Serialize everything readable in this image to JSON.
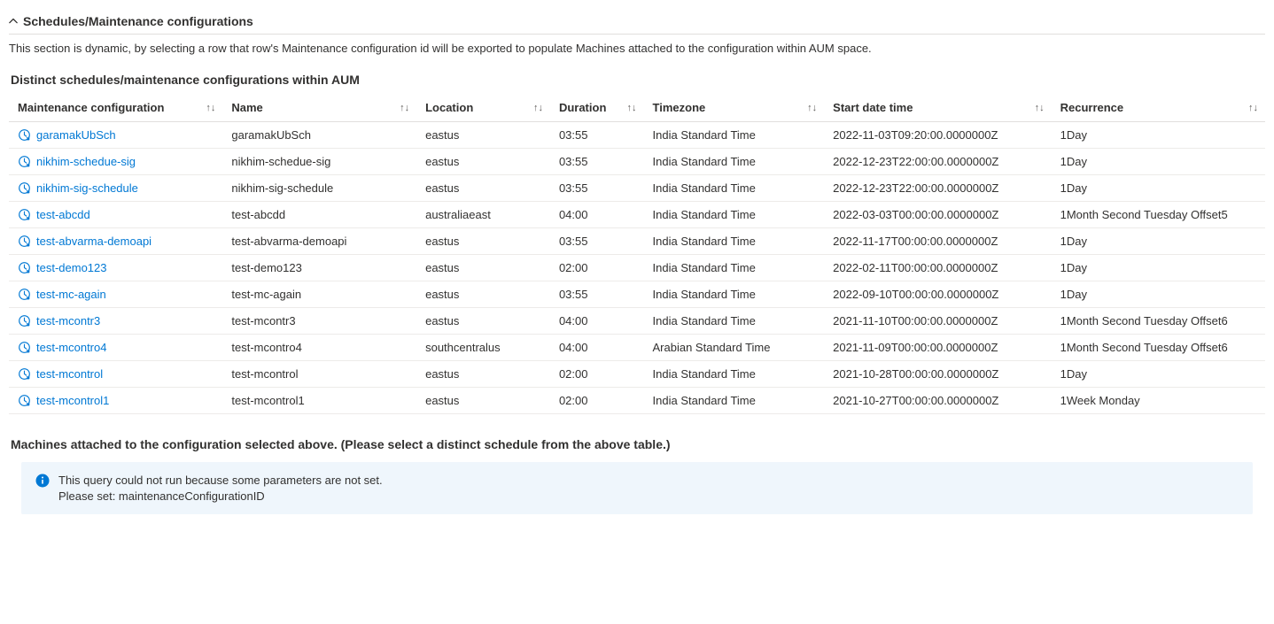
{
  "colors": {
    "link": "#0078d4",
    "text": "#323130",
    "border": "#e1dfdd",
    "rowBorder": "#edebe9",
    "bannerBg": "#eff6fc",
    "iconBlue": "#0078d4"
  },
  "section": {
    "title": "Schedules/Maintenance configurations",
    "description": "This section is dynamic, by selecting a row that row's Maintenance configuration id will be exported to populate Machines attached to the configuration within AUM space."
  },
  "tableHeading": "Distinct schedules/maintenance configurations within AUM",
  "columns": {
    "config": "Maintenance configuration",
    "name": "Name",
    "location": "Location",
    "duration": "Duration",
    "timezone": "Timezone",
    "start": "Start date time",
    "recurrence": "Recurrence"
  },
  "rows": [
    {
      "config": "garamakUbSch",
      "name": "garamakUbSch",
      "location": "eastus",
      "duration": "03:55",
      "timezone": "India Standard Time",
      "start": "2022-11-03T09:20:00.0000000Z",
      "recurrence": "1Day"
    },
    {
      "config": "nikhim-schedue-sig",
      "name": "nikhim-schedue-sig",
      "location": "eastus",
      "duration": "03:55",
      "timezone": "India Standard Time",
      "start": "2022-12-23T22:00:00.0000000Z",
      "recurrence": "1Day"
    },
    {
      "config": "nikhim-sig-schedule",
      "name": "nikhim-sig-schedule",
      "location": "eastus",
      "duration": "03:55",
      "timezone": "India Standard Time",
      "start": "2022-12-23T22:00:00.0000000Z",
      "recurrence": "1Day"
    },
    {
      "config": "test-abcdd",
      "name": "test-abcdd",
      "location": "australiaeast",
      "duration": "04:00",
      "timezone": "India Standard Time",
      "start": "2022-03-03T00:00:00.0000000Z",
      "recurrence": "1Month Second Tuesday Offset5"
    },
    {
      "config": "test-abvarma-demoapi",
      "name": "test-abvarma-demoapi",
      "location": "eastus",
      "duration": "03:55",
      "timezone": "India Standard Time",
      "start": "2022-11-17T00:00:00.0000000Z",
      "recurrence": "1Day"
    },
    {
      "config": "test-demo123",
      "name": "test-demo123",
      "location": "eastus",
      "duration": "02:00",
      "timezone": "India Standard Time",
      "start": "2022-02-11T00:00:00.0000000Z",
      "recurrence": "1Day"
    },
    {
      "config": "test-mc-again",
      "name": "test-mc-again",
      "location": "eastus",
      "duration": "03:55",
      "timezone": "India Standard Time",
      "start": "2022-09-10T00:00:00.0000000Z",
      "recurrence": "1Day"
    },
    {
      "config": "test-mcontr3",
      "name": "test-mcontr3",
      "location": "eastus",
      "duration": "04:00",
      "timezone": "India Standard Time",
      "start": "2021-11-10T00:00:00.0000000Z",
      "recurrence": "1Month Second Tuesday Offset6"
    },
    {
      "config": "test-mcontro4",
      "name": "test-mcontro4",
      "location": "southcentralus",
      "duration": "04:00",
      "timezone": "Arabian Standard Time",
      "start": "2021-11-09T00:00:00.0000000Z",
      "recurrence": "1Month Second Tuesday Offset6"
    },
    {
      "config": "test-mcontrol",
      "name": "test-mcontrol",
      "location": "eastus",
      "duration": "02:00",
      "timezone": "India Standard Time",
      "start": "2021-10-28T00:00:00.0000000Z",
      "recurrence": "1Day"
    },
    {
      "config": "test-mcontrol1",
      "name": "test-mcontrol1",
      "location": "eastus",
      "duration": "02:00",
      "timezone": "India Standard Time",
      "start": "2021-10-27T00:00:00.0000000Z",
      "recurrence": "1Week Monday"
    }
  ],
  "machinesHeading": "Machines attached to the configuration selected above. (Please select a distinct schedule from the above table.)",
  "banner": {
    "line1": "This query could not run because some parameters are not set.",
    "line2": "Please set: maintenanceConfigurationID"
  }
}
